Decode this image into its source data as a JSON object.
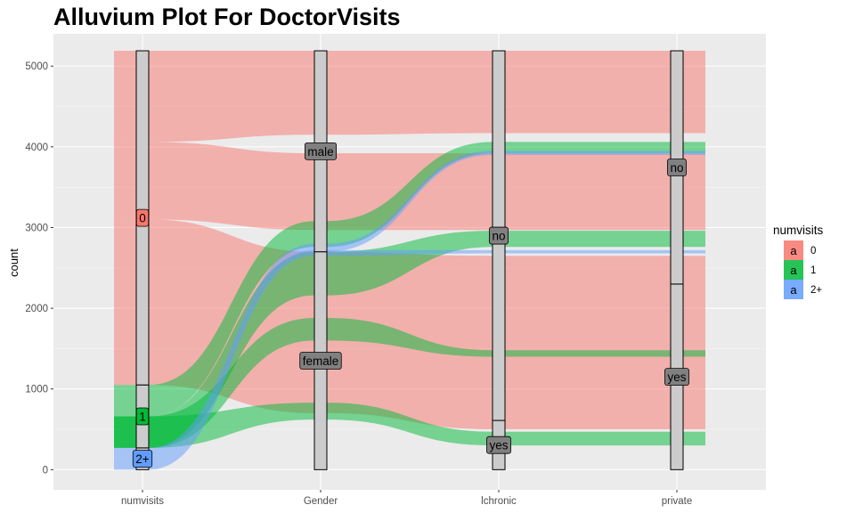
{
  "chart_data": {
    "type": "alluvial",
    "title": "Alluvium Plot For DoctorVisits",
    "xlabel": "",
    "ylabel": "count",
    "axes": [
      "numvisits",
      "Gender",
      "lchronic",
      "private"
    ],
    "ylim": [
      -250,
      5400
    ],
    "yticks": [
      0,
      1000,
      2000,
      3000,
      4000,
      5000
    ],
    "grid": true,
    "legend": {
      "title": "numvisits",
      "position": "right",
      "key_glyph": "a",
      "entries": [
        {
          "label": "0",
          "color": "#F8766D"
        },
        {
          "label": "1",
          "color": "#00BA38"
        },
        {
          "label": "2+",
          "color": "#619CFF"
        }
      ]
    },
    "strata": [
      {
        "axis": "numvisits",
        "levels": [
          {
            "label": "2+",
            "from": 0,
            "to": 270,
            "fill": "#619CFF"
          },
          {
            "label": "1",
            "from": 270,
            "to": 1050,
            "fill": "#00BA38"
          },
          {
            "label": "0",
            "from": 1050,
            "to": 5190,
            "fill": "#F8766D"
          }
        ]
      },
      {
        "axis": "Gender",
        "levels": [
          {
            "label": "female",
            "from": 0,
            "to": 2700,
            "fill": "#808080"
          },
          {
            "label": "male",
            "from": 2700,
            "to": 5190,
            "fill": "#808080"
          }
        ]
      },
      {
        "axis": "lchronic",
        "levels": [
          {
            "label": "yes",
            "from": 0,
            "to": 610,
            "fill": "#808080"
          },
          {
            "label": "no",
            "from": 610,
            "to": 5190,
            "fill": "#808080"
          }
        ]
      },
      {
        "axis": "private",
        "levels": [
          {
            "label": "yes",
            "from": 0,
            "to": 2300,
            "fill": "#808080"
          },
          {
            "label": "no",
            "from": 2300,
            "to": 5190,
            "fill": "#808080"
          }
        ]
      }
    ],
    "flows": [
      {
        "numvisits": "0",
        "segments": [
          [
            4060,
            5190
          ],
          [
            4150,
            5190
          ],
          [
            4170,
            5190
          ]
        ]
      },
      {
        "numvisits": "0",
        "segments": [
          [
            3100,
            4060
          ],
          [
            2970,
            3920
          ],
          [
            2970,
            3920
          ]
        ]
      },
      {
        "numvisits": "0",
        "segments": [
          [
            1050,
            3100
          ],
          [
            700,
            2700
          ],
          [
            500,
            2650
          ]
        ]
      },
      {
        "numvisits": "1",
        "segments": [
          [
            660,
            1050
          ],
          [
            2760,
            3080
          ],
          [
            3920,
            4060
          ]
        ]
      },
      {
        "numvisits": "1",
        "segments": [
          [
            270,
            660
          ],
          [
            2160,
            2700
          ],
          [
            2760,
            2960
          ]
        ]
      },
      {
        "numvisits": "1",
        "segments": [
          [
            270,
            660
          ],
          [
            1600,
            1880
          ],
          [
            1400,
            1480
          ]
        ]
      },
      {
        "numvisits": "1",
        "segments": [
          [
            270,
            660
          ],
          [
            620,
            830
          ],
          [
            300,
            470
          ]
        ]
      },
      {
        "numvisits": "2+",
        "segments": [
          [
            150,
            270
          ],
          [
            2700,
            2800
          ],
          [
            3900,
            3950
          ]
        ]
      },
      {
        "numvisits": "2+",
        "segments": [
          [
            0,
            150
          ],
          [
            2650,
            2720
          ],
          [
            2680,
            2720
          ]
        ]
      }
    ]
  }
}
